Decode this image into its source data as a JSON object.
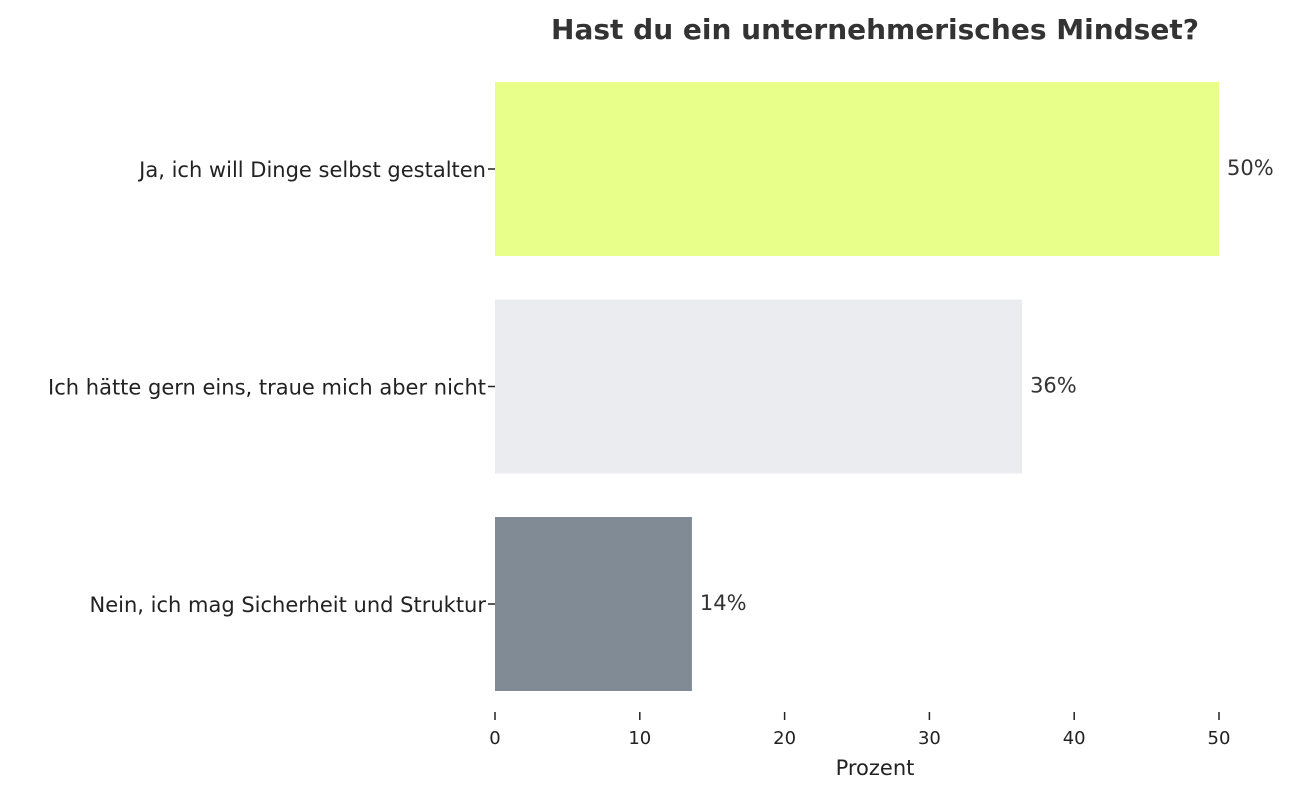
{
  "chart_data": {
    "type": "bar",
    "orientation": "horizontal",
    "title": "Hast du ein unternehmerisches Mindset?",
    "xlabel": "Prozent",
    "ylabel": "",
    "categories": [
      "Ja, ich will Dinge selbst gestalten",
      "Ich hätte gern eins, traue mich aber nicht",
      "Nein, ich mag Sicherheit und Struktur"
    ],
    "values": [
      50,
      36.4,
      13.6
    ],
    "value_labels": [
      "50%",
      "36%",
      "14%"
    ],
    "colors": [
      "#e8ff8a",
      "#ebecf0",
      "#808b96"
    ],
    "xlim": [
      0,
      50
    ],
    "xticks": [
      0,
      10,
      20,
      30,
      40,
      50
    ],
    "grid": false,
    "legend": "none"
  }
}
